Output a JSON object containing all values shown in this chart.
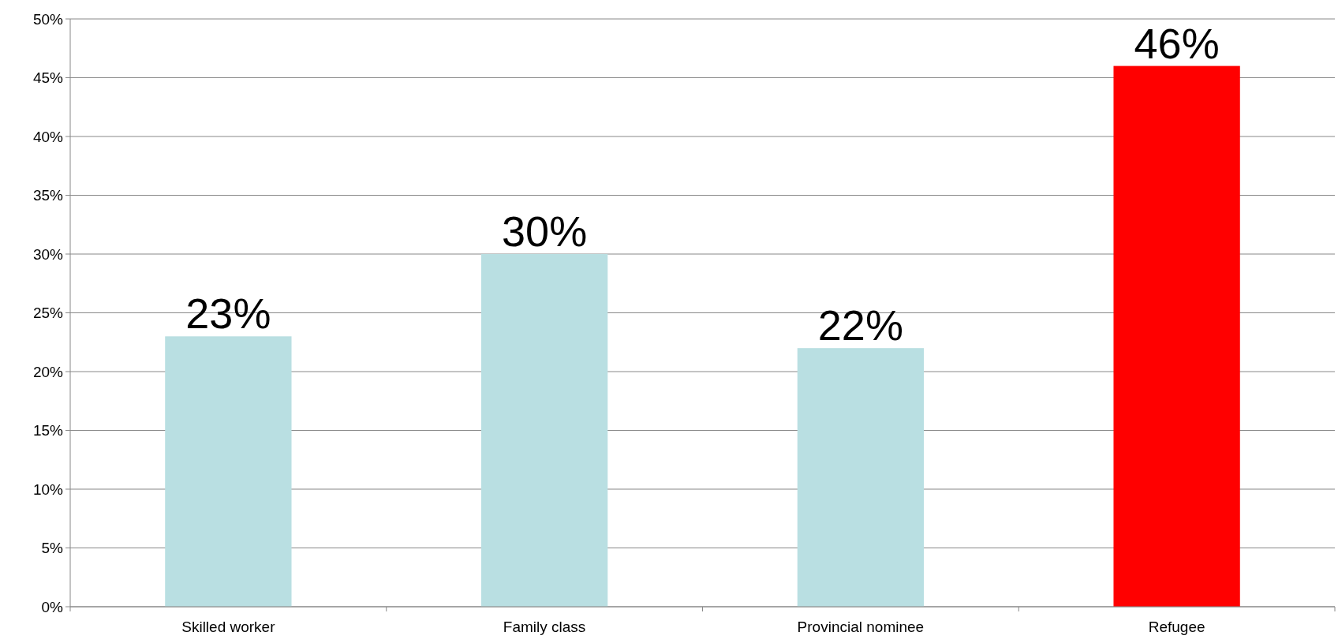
{
  "chart_data": {
    "type": "bar",
    "categories": [
      "Skilled worker",
      "Family class",
      "Provincial nominee",
      "Refugee"
    ],
    "values": [
      23,
      30,
      22,
      46
    ],
    "colors": [
      "#b9dfe2",
      "#b9dfe2",
      "#b9dfe2",
      "#ff0000"
    ],
    "value_labels": [
      "23%",
      "30%",
      "22%",
      "46%"
    ],
    "ylim": [
      0,
      50
    ],
    "yticks": [
      {
        "value": 0,
        "label": "0%"
      },
      {
        "value": 5,
        "label": "5%"
      },
      {
        "value": 10,
        "label": "10%"
      },
      {
        "value": 15,
        "label": "15%"
      },
      {
        "value": 20,
        "label": "20%"
      },
      {
        "value": 25,
        "label": "25%"
      },
      {
        "value": 30,
        "label": "30%"
      },
      {
        "value": 35,
        "label": "35%"
      },
      {
        "value": 40,
        "label": "40%"
      },
      {
        "value": 45,
        "label": "45%"
      },
      {
        "value": 50,
        "label": "50%"
      }
    ],
    "grid": "y"
  }
}
